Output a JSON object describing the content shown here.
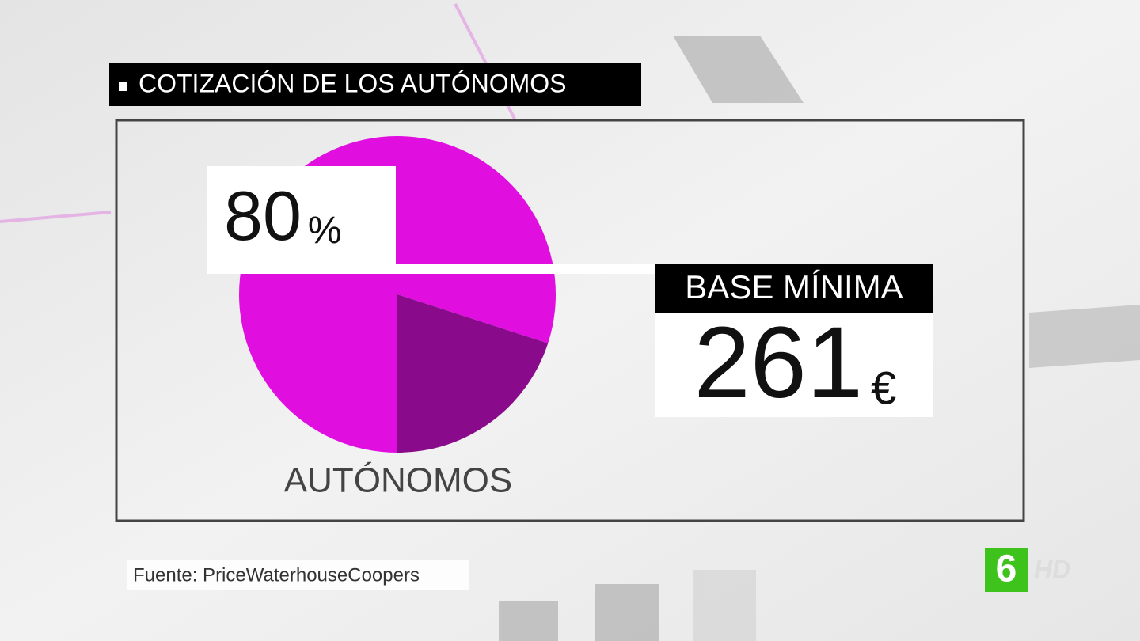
{
  "chart_data": {
    "type": "pie",
    "title": "COTIZACIÓN DE LOS AUTÓNOMOS",
    "label": "AUTÓNOMOS",
    "values": [
      80,
      20
    ],
    "value_labels": [
      "80%",
      null
    ],
    "colors": [
      "#e10ee0",
      "#8a0a8c"
    ]
  },
  "callout": {
    "label": "BASE MÍNIMA",
    "value": "261",
    "unit": "€"
  },
  "source": "Fuente: PriceWaterhouseCoopers",
  "logo": {
    "channel": "6",
    "text": "HD"
  }
}
